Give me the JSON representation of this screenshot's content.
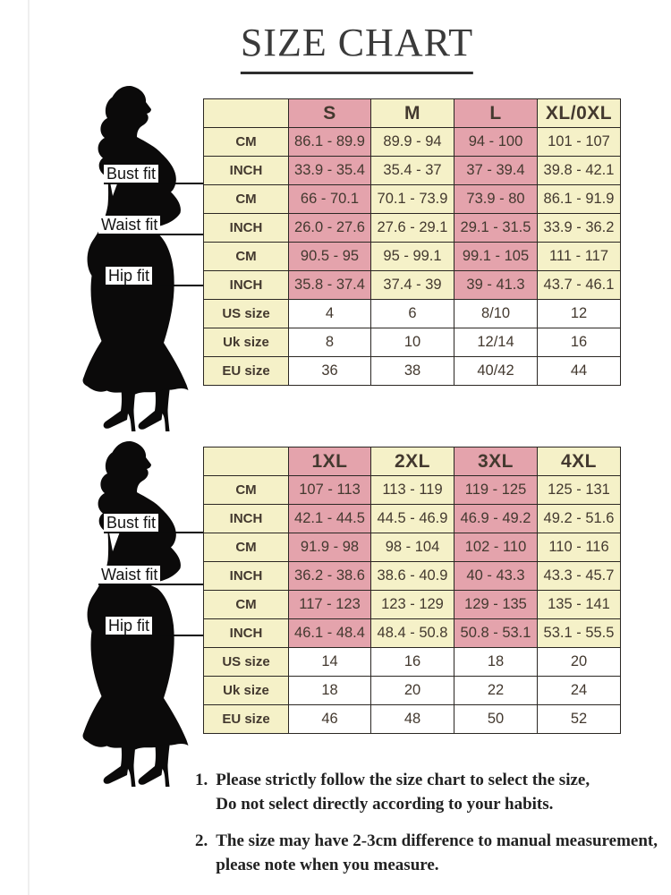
{
  "title": "SIZE CHART",
  "colors": {
    "pink": "#e4a3ac",
    "cream": "#f5f1c8",
    "white_cell": "#ffffff",
    "border": "#2b2723",
    "text": "#43392f"
  },
  "fit_labels": [
    "Bust fit",
    "Waist fit",
    "Hip fit"
  ],
  "tables": [
    {
      "name": "size-table-regular",
      "columns": [
        "S",
        "M",
        "L",
        "XL/0XL"
      ],
      "rows": [
        {
          "label": "CM",
          "group": "bust",
          "band": true,
          "values": [
            "86.1 - 89.9",
            "89.9 - 94",
            "94 - 100",
            "101 - 107"
          ]
        },
        {
          "label": "INCH",
          "group": "bust",
          "band": true,
          "values": [
            "33.9 - 35.4",
            "35.4 - 37",
            "37 - 39.4",
            "39.8 - 42.1"
          ]
        },
        {
          "label": "CM",
          "group": "waist",
          "band": true,
          "values": [
            "66 - 70.1",
            "70.1 - 73.9",
            "73.9 - 80",
            "86.1 - 91.9"
          ]
        },
        {
          "label": "INCH",
          "group": "waist",
          "band": true,
          "values": [
            "26.0 - 27.6",
            "27.6 - 29.1",
            "29.1 - 31.5",
            "33.9 - 36.2"
          ]
        },
        {
          "label": "CM",
          "group": "hip",
          "band": true,
          "values": [
            "90.5 - 95",
            "95 - 99.1",
            "99.1 - 105",
            "111 - 117"
          ]
        },
        {
          "label": "INCH",
          "group": "hip",
          "band": true,
          "values": [
            "35.8 - 37.4",
            "37.4 - 39",
            "39 - 41.3",
            "43.7 - 46.1"
          ]
        },
        {
          "label": "US size",
          "group": "size",
          "band": false,
          "values": [
            "4",
            "6",
            "8/10",
            "12"
          ]
        },
        {
          "label": "Uk size",
          "group": "size",
          "band": false,
          "values": [
            "8",
            "10",
            "12/14",
            "16"
          ]
        },
        {
          "label": "EU size",
          "group": "size",
          "band": false,
          "values": [
            "36",
            "38",
            "40/42",
            "44"
          ]
        }
      ]
    },
    {
      "name": "size-table-plus",
      "columns": [
        "1XL",
        "2XL",
        "3XL",
        "4XL"
      ],
      "rows": [
        {
          "label": "CM",
          "group": "bust",
          "band": true,
          "values": [
            "107 - 113",
            "113 - 119",
            "119 - 125",
            "125 - 131"
          ]
        },
        {
          "label": "INCH",
          "group": "bust",
          "band": true,
          "values": [
            "42.1 - 44.5",
            "44.5 - 46.9",
            "46.9 - 49.2",
            "49.2 - 51.6"
          ]
        },
        {
          "label": "CM",
          "group": "waist",
          "band": true,
          "values": [
            "91.9 - 98",
            "98 - 104",
            "102 - 110",
            "110 - 116"
          ]
        },
        {
          "label": "INCH",
          "group": "waist",
          "band": true,
          "values": [
            "36.2 - 38.6",
            "38.6 - 40.9",
            "40 - 43.3",
            "43.3 - 45.7"
          ]
        },
        {
          "label": "CM",
          "group": "hip",
          "band": true,
          "values": [
            "117 - 123",
            "123 - 129",
            "129 - 135",
            "135 - 141"
          ]
        },
        {
          "label": "INCH",
          "group": "hip",
          "band": true,
          "values": [
            "46.1 - 48.4",
            "48.4 - 50.8",
            "50.8 - 53.1",
            "53.1 - 55.5"
          ]
        },
        {
          "label": "US size",
          "group": "size",
          "band": false,
          "values": [
            "14",
            "16",
            "18",
            "20"
          ]
        },
        {
          "label": "Uk size",
          "group": "size",
          "band": false,
          "values": [
            "18",
            "20",
            "22",
            "24"
          ]
        },
        {
          "label": "EU size",
          "group": "size",
          "band": false,
          "values": [
            "46",
            "48",
            "50",
            "52"
          ]
        }
      ]
    }
  ],
  "notes": [
    {
      "num": "1.",
      "lines": [
        "Please strictly follow the size chart to select the size,",
        "Do not select directly according to your habits."
      ]
    },
    {
      "num": "2.",
      "lines": [
        "The size may have 2-3cm difference to manual measurement,",
        "please note when you measure."
      ]
    }
  ]
}
